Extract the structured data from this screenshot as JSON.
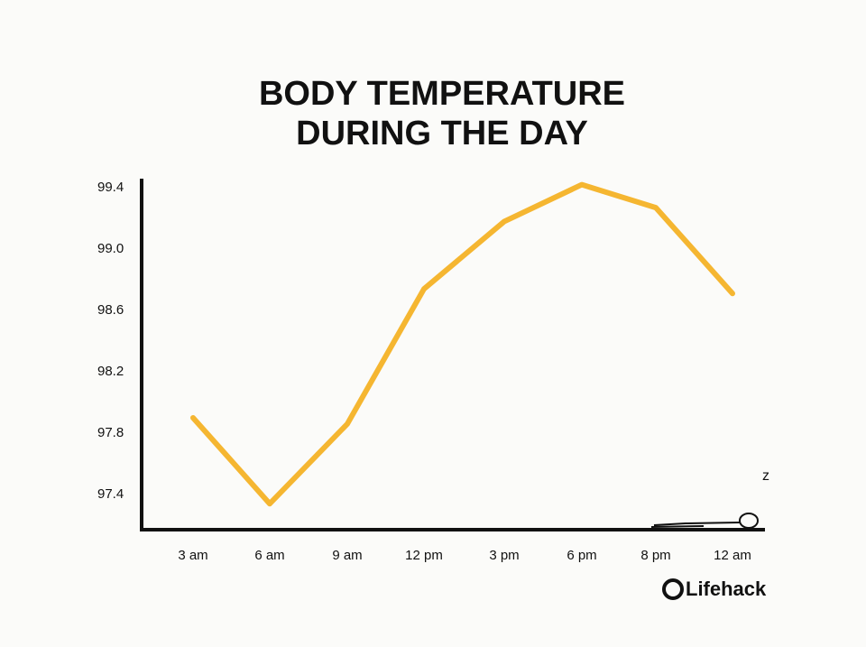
{
  "chart_data": {
    "type": "line",
    "title": [
      "BODY TEMPERATURE",
      "DURING THE DAY"
    ],
    "categories": [
      "3 am",
      "6 am",
      "9 am",
      "12 pm",
      "3 pm",
      "6 pm",
      "8 pm",
      "12 am"
    ],
    "series": [
      {
        "color": "#f5b631",
        "values": [
          97.9,
          97.34,
          97.86,
          98.74,
          99.18,
          99.42,
          99.27,
          98.71
        ]
      }
    ],
    "ylim": [
      97.2,
      99.5
    ],
    "yticks": [
      97.4,
      97.8,
      98.2,
      98.6,
      {
        "value": 99,
        "label": "99.0"
      },
      99.4
    ],
    "grid": false,
    "source": "Lifehack"
  }
}
